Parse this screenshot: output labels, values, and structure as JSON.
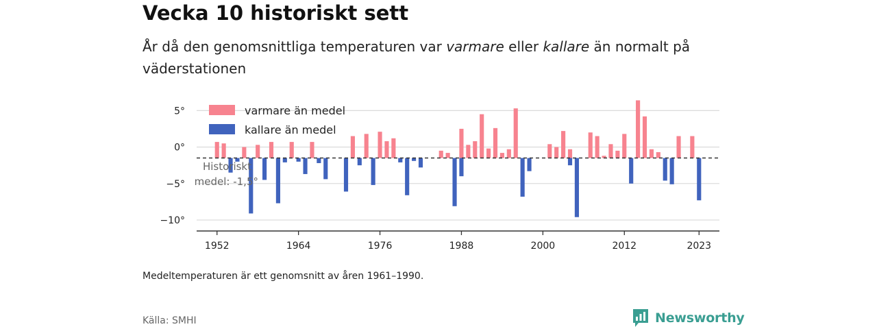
{
  "title": "Vecka 10 historiskt sett",
  "subtitle": {
    "part1": "År då den genomsnittliga temperaturen var ",
    "warm_word": "varmare",
    "part2": " eller ",
    "cold_word": "kallare",
    "part3": " än normalt på väderstationen"
  },
  "note": "Medeltemperaturen är ett genomsnitt av åren 1961–1990.",
  "source": "Källa: SMHI",
  "brand": {
    "name": "Newsworthy",
    "icon": "newsworthy-chart-bubble-icon",
    "color": "#3a9e92"
  },
  "colors": {
    "warm": "#f7838f",
    "cold": "#4063bd",
    "grid": "#dddddd",
    "axis": "#333333"
  },
  "chart_data": {
    "type": "bar",
    "x_range": [
      1949,
      2026
    ],
    "ylim": [
      -11.5,
      7
    ],
    "y_ticks": [
      5,
      0,
      -5,
      -10
    ],
    "y_tick_labels": [
      "5°",
      "0°",
      "−5°",
      "−10°"
    ],
    "x_ticks": [
      1952,
      1964,
      1976,
      1988,
      2000,
      2012,
      2023
    ],
    "x_tick_labels": [
      "1952",
      "1964",
      "1976",
      "1988",
      "2000",
      "2012",
      "2023"
    ],
    "baseline": -1.5,
    "baseline_label": [
      "Historiskt",
      "medel: -1,5°"
    ],
    "legend": {
      "warm": "varmare än medel",
      "cold": "kallare än medel",
      "position": "top-left"
    },
    "series": [
      {
        "name": "varmare än medel",
        "points": [
          [
            1952,
            0.7
          ],
          [
            1953,
            0.5
          ],
          [
            1956,
            0.0
          ],
          [
            1958,
            0.3
          ],
          [
            1960,
            0.7
          ],
          [
            1963,
            0.7
          ],
          [
            1966,
            0.7
          ],
          [
            1972,
            1.5
          ],
          [
            1974,
            1.8
          ],
          [
            1976,
            2.1
          ],
          [
            1977,
            0.8
          ],
          [
            1978,
            1.2
          ],
          [
            1985,
            -0.5
          ],
          [
            1986,
            -0.8
          ],
          [
            1988,
            2.5
          ],
          [
            1989,
            0.3
          ],
          [
            1990,
            0.8
          ],
          [
            1991,
            4.5
          ],
          [
            1992,
            -0.2
          ],
          [
            1993,
            2.6
          ],
          [
            1994,
            -0.8
          ],
          [
            1995,
            -0.3
          ],
          [
            1996,
            5.3
          ],
          [
            2001,
            0.4
          ],
          [
            2002,
            0.0
          ],
          [
            2003,
            2.2
          ],
          [
            2004,
            -0.3
          ],
          [
            2007,
            2.0
          ],
          [
            2008,
            1.5
          ],
          [
            2009,
            -1.2
          ],
          [
            2010,
            0.4
          ],
          [
            2011,
            -0.5
          ],
          [
            2012,
            1.8
          ],
          [
            2014,
            6.4
          ],
          [
            2015,
            4.2
          ],
          [
            2016,
            -0.3
          ],
          [
            2017,
            -0.7
          ],
          [
            2020,
            1.5
          ],
          [
            2022,
            1.5
          ]
        ]
      },
      {
        "name": "kallare än medel",
        "points": [
          [
            1954,
            -3.5
          ],
          [
            1955,
            -2.0
          ],
          [
            1957,
            -9.1
          ],
          [
            1959,
            -4.5
          ],
          [
            1961,
            -7.7
          ],
          [
            1962,
            -2.1
          ],
          [
            1964,
            -2.0
          ],
          [
            1965,
            -3.7
          ],
          [
            1967,
            -2.2
          ],
          [
            1968,
            -4.4
          ],
          [
            1971,
            -6.1
          ],
          [
            1973,
            -2.5
          ],
          [
            1975,
            -5.2
          ],
          [
            1979,
            -2.1
          ],
          [
            1980,
            -6.6
          ],
          [
            1981,
            -1.9
          ],
          [
            1982,
            -2.8
          ],
          [
            1987,
            -8.1
          ],
          [
            1988,
            -4.0
          ],
          [
            1997,
            -6.8
          ],
          [
            1998,
            -3.3
          ],
          [
            2004,
            -2.5
          ],
          [
            2005,
            -9.6
          ],
          [
            2013,
            -5.0
          ],
          [
            2018,
            -4.6
          ],
          [
            2019,
            -5.1
          ],
          [
            2023,
            -7.3
          ]
        ]
      }
    ]
  }
}
